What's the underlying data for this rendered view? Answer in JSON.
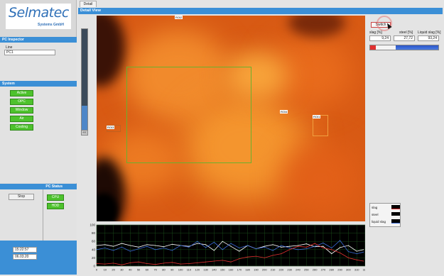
{
  "logo": {
    "word": "Selmatec",
    "sub": "Systems GmbH"
  },
  "pc_inspector": {
    "title": "PC Inspector",
    "line_label": "Line",
    "line_value": "PC1"
  },
  "system": {
    "title": "System",
    "buttons": [
      "Active",
      "OPC",
      "Window",
      "Air",
      "Cooling"
    ]
  },
  "pc_status": {
    "title": "PC Status",
    "stop_label": "Stop",
    "cpu_label": "CPU",
    "hdd_label": "HDD"
  },
  "clock": {
    "time": "15:22:57",
    "date": "06.03.20"
  },
  "tabs": {
    "detail": "Detail"
  },
  "detail_view": {
    "title": "Detail View"
  },
  "rois": {
    "roi1": "ROI1",
    "roi2": "ROI2",
    "roi3": "ROI3",
    "roi4": "ROI4"
  },
  "side_button": "<<",
  "switch_label": "Switch",
  "readout": {
    "slag_label": "slag [%]",
    "steel_label": "steel [%]",
    "liquid_label": "Liquid slag [%]",
    "slag_value": "9,24",
    "steel_value": "27,72",
    "liquid_value": "93,24"
  },
  "legend": {
    "slag": "slag",
    "steel": "steel",
    "liquid": "liquid slag"
  },
  "colors": {
    "accent": "#3b8fd6",
    "green_button": "#4ec22d",
    "slag": "#e03030",
    "steel": "#3a6bd8",
    "liquid": "#ffffff"
  },
  "chart_data": {
    "type": "line",
    "ylim": [
      0,
      100
    ],
    "xlim": [
      0,
      320
    ],
    "y_ticks": [
      "100",
      "80",
      "60",
      "40",
      "20",
      "0"
    ],
    "x_ticks": [
      "0",
      "10",
      "20",
      "30",
      "40",
      "50",
      "60",
      "70",
      "80",
      "90",
      "100",
      "110",
      "120",
      "130",
      "140",
      "150",
      "160",
      "170",
      "180",
      "190",
      "200",
      "210",
      "220",
      "230",
      "240",
      "250",
      "260",
      "270",
      "280",
      "290",
      "300",
      "310",
      "320"
    ],
    "grid": true,
    "series": [
      {
        "name": "liquid slag",
        "color": "#ffffff",
        "x": [
          0,
          10,
          20,
          30,
          40,
          50,
          60,
          70,
          80,
          90,
          100,
          110,
          120,
          130,
          140,
          150,
          160,
          170,
          180,
          190,
          200,
          210,
          220,
          230,
          240,
          250,
          260,
          270,
          280,
          290,
          300,
          310,
          318
        ],
        "y": [
          50,
          52,
          48,
          55,
          50,
          46,
          52,
          50,
          47,
          53,
          50,
          48,
          55,
          52,
          38,
          60,
          48,
          36,
          50,
          42,
          48,
          52,
          46,
          48,
          50,
          54,
          47,
          48,
          30,
          45,
          50,
          36,
          40
        ]
      },
      {
        "name": "steel",
        "color": "#3a6bd8",
        "x": [
          0,
          10,
          20,
          30,
          40,
          50,
          60,
          70,
          80,
          90,
          100,
          110,
          120,
          130,
          140,
          150,
          160,
          170,
          180,
          190,
          200,
          210,
          220,
          230,
          240,
          250,
          260,
          270,
          280,
          290,
          300,
          310,
          318
        ],
        "y": [
          40,
          44,
          38,
          46,
          36,
          42,
          48,
          40,
          44,
          38,
          50,
          46,
          60,
          45,
          58,
          40,
          55,
          44,
          50,
          42,
          46,
          38,
          50,
          44,
          40,
          42,
          48,
          56,
          44,
          62,
          35,
          30,
          34
        ]
      },
      {
        "name": "slag",
        "color": "#e03030",
        "x": [
          0,
          10,
          20,
          30,
          40,
          50,
          60,
          70,
          80,
          90,
          100,
          110,
          120,
          130,
          140,
          150,
          160,
          170,
          180,
          190,
          200,
          210,
          220,
          230,
          240,
          250,
          260,
          270,
          280,
          290,
          300,
          310,
          318
        ],
        "y": [
          6,
          5,
          7,
          3,
          8,
          10,
          6,
          4,
          7,
          9,
          5,
          6,
          8,
          10,
          12,
          14,
          10,
          18,
          22,
          24,
          20,
          26,
          30,
          40,
          48,
          46,
          55,
          44,
          40,
          32,
          20,
          15,
          12
        ]
      }
    ]
  }
}
